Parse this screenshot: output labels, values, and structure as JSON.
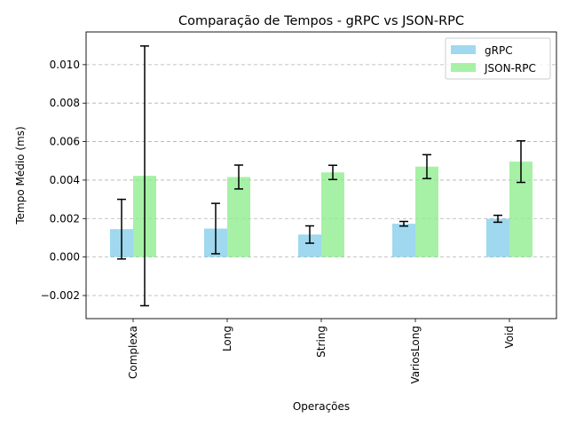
{
  "chart_data": {
    "type": "bar",
    "title": "Comparação de Tempos - gRPC vs JSON-RPC",
    "xlabel": "Operações",
    "ylabel": "Tempo Médio (ms)",
    "categories": [
      "Complexa",
      "Long",
      "String",
      "VariosLong",
      "Void"
    ],
    "ylim": [
      -0.0032,
      0.0117
    ],
    "yticks": [
      -0.002,
      0.0,
      0.002,
      0.004,
      0.006,
      0.008,
      0.01
    ],
    "ytick_labels": [
      "−0.002",
      "0.000",
      "0.002",
      "0.004",
      "0.006",
      "0.008",
      "0.010"
    ],
    "grid": "y-dashed",
    "legend_position": "top-right",
    "series": [
      {
        "name": "gRPC",
        "color": "#87CEEB",
        "values": [
          0.00145,
          0.00148,
          0.00117,
          0.00173,
          0.00199
        ],
        "errors": [
          0.00155,
          0.00131,
          0.00045,
          0.00012,
          0.00018
        ]
      },
      {
        "name": "JSON-RPC",
        "color": "#90EE90",
        "values": [
          0.00422,
          0.00416,
          0.0044,
          0.0047,
          0.00496
        ],
        "errors": [
          0.00675,
          0.00062,
          0.00037,
          0.00062,
          0.00108
        ]
      }
    ]
  }
}
